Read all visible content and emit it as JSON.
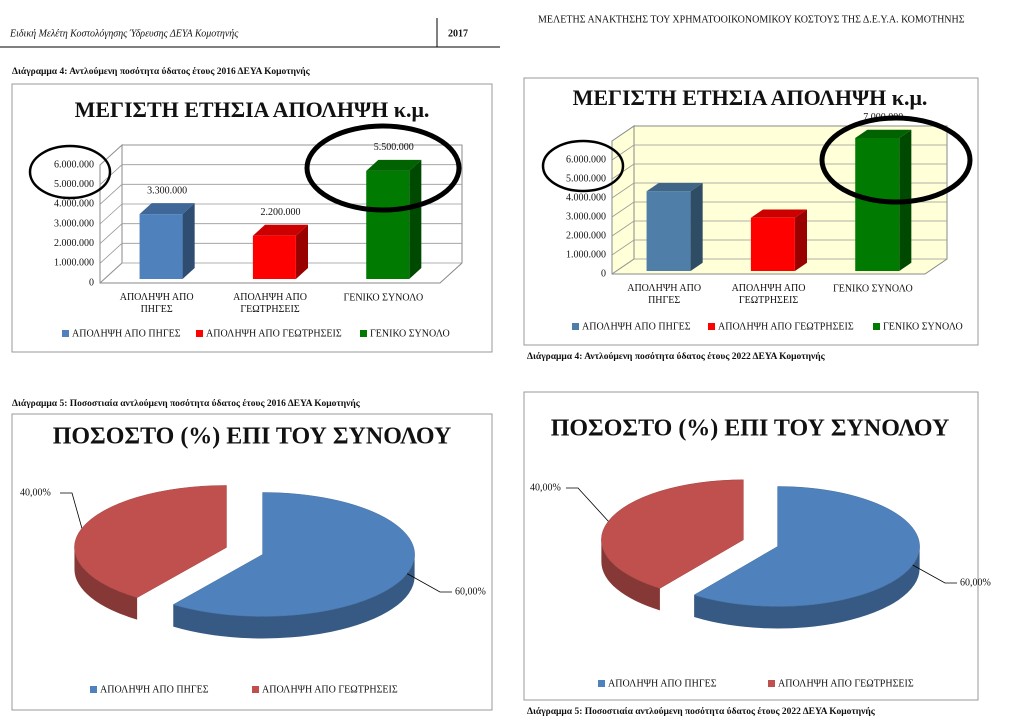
{
  "header": {
    "left_title": "Ειδική Μελέτη Κοστολόγησης Ύδρευσης ΔΕΥΑ Κομοτηνής",
    "year": "2017",
    "right_title": "ΜΕΛΕΤΗΣ ΑΝΑΚΤΗΣΗΣ ΤΟΥ ΧΡΗΜΑΤΟΟΙΚΟΝΟΜΙΚΟΥ ΚΟΣΤΟΥΣ ΤΗΣ Δ.Ε.Υ.Α. ΚΟΜΟΤΗΝΗΣ"
  },
  "captions": [
    "Διάγραμμα 4: Αντλούμενη ποσότητα ύδατος έτους 2016 ΔΕΥΑ Κομοτηνής",
    "Διάγραμμα 4: Αντλούμενη ποσότητα ύδατος έτους 2022 ΔΕΥΑ Κομοτηνής",
    "Διάγραμμα 5: Ποσοστιαία αντλούμενη ποσότητα ύδατος έτους 2016 ΔΕΥΑ Κομοτηνής",
    "Διάγραμμα 5: Ποσοστιαία αντλούμενη ποσότητα ύδατος έτους 2022 ΔΕΥΑ Κομοτηνής"
  ],
  "chart_data": [
    {
      "type": "bar",
      "title": "ΜΕΓΙΣΤΗ ΕΤΗΣΙΑ ΑΠΟΛΗΨΗ κ.μ.",
      "categories": [
        "ΑΠΟΛΗΨΗ ΑΠΟ ΠΗΓΕΣ",
        "ΑΠΟΛΗΨΗ ΑΠΟ ΓΕΩΤΡΗΣΕΙΣ",
        "ΓΕΝΙΚΟ ΣΥΝΟΛΟ"
      ],
      "values": [
        3300000,
        2200000,
        5500000
      ],
      "value_labels": [
        "3.300.000",
        "2.200.000",
        "5.500.000"
      ],
      "colors": [
        "#4f81bd",
        "#ff0000",
        "#007a00"
      ],
      "ylim": [
        0,
        6000000
      ],
      "yticks": [
        0,
        {
          "value": 1000000,
          "label": "1.000.000"
        },
        {
          "value": 2000000,
          "label": "2.000.000"
        },
        {
          "value": 3000000,
          "label": "3.000.000"
        },
        {
          "value": 4000000,
          "label": "4.000.000"
        },
        {
          "value": 5000000,
          "label": "5.000.000"
        },
        {
          "value": 6000000,
          "label": "6.000.000"
        }
      ],
      "grid": true
    },
    {
      "type": "bar",
      "title": "ΜΕΓΙΣΤΗ ΕΤΗΣΙΑ ΑΠΟΛΗΨΗ κ.μ.",
      "categories": [
        "ΑΠΟΛΗΨΗ ΑΠΟ ΠΗΓΕΣ",
        "ΑΠΟΛΗΨΗ ΑΠΟ ΓΕΩΤΡΗΣΕΙΣ",
        "ΓΕΝΙΚΟ ΣΥΝΟΛΟ"
      ],
      "values": [
        4200000,
        2800000,
        7000000
      ],
      "value_labels": [
        null,
        null,
        "7.000.000"
      ],
      "colors": [
        "#4f7fa8",
        "#ff0000",
        "#007a00"
      ],
      "ylim": [
        0,
        7000000
      ],
      "yticks": [
        0,
        {
          "value": 1000000,
          "label": "1.000.000"
        },
        {
          "value": 2000000,
          "label": "2.000.000"
        },
        {
          "value": 3000000,
          "label": "3.000.000"
        },
        {
          "value": 4000000,
          "label": "4.000.000"
        },
        {
          "value": 5000000,
          "label": "5.000.000"
        },
        {
          "value": 6000000,
          "label": "6.000.000"
        }
      ],
      "grid": true,
      "plot_background": "#ffffd8"
    },
    {
      "type": "pie",
      "title": "ΠΟΣΟΣΤΟ (%) ΕΠΙ ΤΟΥ ΣΥΝΟΛΟΥ",
      "categories": [
        "ΑΠΟΛΗΨΗ ΑΠΟ ΠΗΓΕΣ",
        "ΑΠΟΛΗΨΗ ΑΠΟ ΓΕΩΤΡΗΣΕΙΣ"
      ],
      "values": [
        60,
        40
      ],
      "value_labels": [
        "60,00%",
        "40,00%"
      ],
      "colors": [
        "#4f81bd",
        "#c0504d"
      ]
    },
    {
      "type": "pie",
      "title": "ΠΟΣΟΣΤΟ (%) ΕΠΙ ΤΟΥ ΣΥΝΟΛΟΥ",
      "categories": [
        "ΑΠΟΛΗΨΗ ΑΠΟ ΠΗΓΕΣ",
        "ΑΠΟΛΗΨΗ ΑΠΟ ΓΕΩΤΡΗΣΕΙΣ"
      ],
      "values": [
        60,
        40
      ],
      "value_labels": [
        "60,00%",
        "40,00%"
      ],
      "colors": [
        "#4f81bd",
        "#c0504d"
      ]
    }
  ]
}
